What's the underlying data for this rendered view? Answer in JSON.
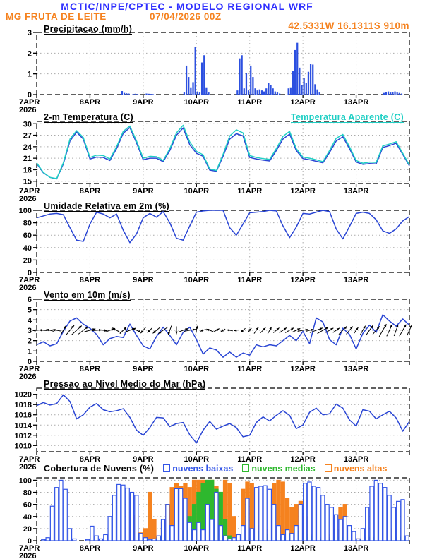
{
  "header": {
    "line1": "MCTIC/INPE/CPTEC - MODELO REGIONAL WRF",
    "location": "MG FRUTA DE LEITE",
    "run": "07/04/2026 00Z",
    "coords": "42.5331W 16.1311S 910m"
  },
  "colors": {
    "header_blue": "#2f2fff",
    "orange": "#f5821f",
    "cyan": "#1fcfc4",
    "line_blue": "#2945d4",
    "precip_bar_blue": "#2c50e0",
    "cloud_low_blue": "#3355e6",
    "cloud_mid_green": "#2eb82e",
    "cloud_high_orange": "#f5821f",
    "grid_gray": "#aaaaaa",
    "frame_black": "#000000"
  },
  "x_axis": {
    "day_labels": [
      "7APR",
      "8APR",
      "9APR",
      "10APR",
      "11APR",
      "12APR",
      "13APR"
    ],
    "year": "2026",
    "days": 7,
    "hours_total": 168
  },
  "chart_data": [
    {
      "id": "precip",
      "type": "bar",
      "title": "Precipitacao (mm/h)",
      "ylabel": "mm/h",
      "ylim": [
        0,
        3
      ],
      "yticks": [
        0,
        1,
        2,
        3
      ],
      "x_step_hours": 1,
      "values": [
        0,
        0,
        0,
        0,
        0,
        0,
        0,
        0,
        0,
        0,
        0,
        0,
        0,
        0,
        0,
        0,
        0,
        0,
        0,
        0,
        0,
        0,
        0,
        0,
        0,
        0,
        0,
        0,
        0,
        0,
        0,
        0,
        0,
        0,
        0,
        0,
        0,
        0,
        0.17,
        0.08,
        0.06,
        0.05,
        0,
        0.03,
        0.04,
        0.03,
        0,
        0,
        0,
        0.05,
        0.04,
        0.03,
        0.02,
        0,
        0,
        0,
        0,
        0,
        0,
        0,
        0,
        0,
        0,
        0,
        0,
        0,
        0.1,
        1.4,
        0.85,
        0.35,
        0.6,
        2.3,
        0.15,
        0.1,
        1.55,
        1.9,
        0.35,
        0.1,
        0,
        0,
        0,
        0,
        0,
        0,
        0,
        0,
        0,
        0,
        0,
        0,
        0.2,
        1.75,
        1.9,
        0.3,
        1.05,
        0.2,
        1.4,
        0.85,
        0.3,
        0.2,
        0.25,
        0.2,
        0.15,
        0.3,
        0.55,
        0.45,
        0.3,
        0.15,
        0.1,
        0.05,
        0,
        0,
        0,
        0.3,
        0.35,
        1.15,
        2.15,
        2.5,
        1.3,
        0.45,
        0.8,
        0.55,
        1.1,
        1.5,
        1.45,
        0.5,
        0.25,
        0.1,
        0,
        0,
        0,
        0,
        0,
        0,
        0,
        0,
        0,
        0,
        0,
        0,
        0,
        0,
        0,
        0,
        0,
        0,
        0,
        0,
        0,
        0,
        0,
        0,
        0,
        0,
        0,
        0,
        0.08,
        0.12,
        0.15,
        0.1,
        0.12,
        0.15,
        0.1,
        0.08,
        0.05,
        0,
        0,
        0
      ]
    },
    {
      "id": "temp",
      "type": "line",
      "title": "2-m Temperatura (C)",
      "right_title": "Temperatura Aparente (C)",
      "ylim": [
        14.4,
        30.6
      ],
      "yticks": [
        15,
        18,
        21,
        24,
        27,
        30
      ],
      "x_step_hours": 3,
      "series": [
        {
          "name": "2-m Temperatura (C)",
          "color_key": "line_blue",
          "values": [
            19.6,
            17.2,
            16.0,
            15.6,
            19.5,
            25.5,
            27.8,
            26.0,
            20.8,
            21.3,
            21.2,
            20.4,
            23.5,
            27.5,
            29.0,
            25.0,
            20.6,
            21.0,
            21.0,
            20.1,
            23.0,
            27.0,
            28.9,
            24.5,
            22.3,
            21.5,
            17.9,
            17.6,
            21.5,
            26.0,
            27.4,
            26.8,
            21.2,
            20.8,
            20.5,
            20.3,
            23.0,
            26.0,
            27.3,
            23.0,
            20.9,
            20.6,
            20.2,
            19.8,
            22.5,
            25.5,
            26.6,
            23.5,
            20.0,
            19.4,
            19.6,
            19.5,
            23.8,
            24.3,
            24.9,
            22.0,
            19.0
          ]
        },
        {
          "name": "Temperatura Aparente (C)",
          "color_key": "cyan",
          "values": [
            19.8,
            17.3,
            16.0,
            15.7,
            19.8,
            26.0,
            28.2,
            26.4,
            21.2,
            21.8,
            21.7,
            20.8,
            24.0,
            28.0,
            29.4,
            25.5,
            21.0,
            21.5,
            21.4,
            20.4,
            23.5,
            27.6,
            29.6,
            25.2,
            22.8,
            21.9,
            18.2,
            17.8,
            22.0,
            26.8,
            28.4,
            27.6,
            21.7,
            21.2,
            20.9,
            20.7,
            23.5,
            26.7,
            28.0,
            23.5,
            21.3,
            21.0,
            20.6,
            20.1,
            23.0,
            26.2,
            27.2,
            24.0,
            20.4,
            19.7,
            20.0,
            19.9,
            24.2,
            24.7,
            25.3,
            22.3,
            19.2
          ]
        }
      ]
    },
    {
      "id": "rh",
      "type": "line",
      "title": "Umidade Relativa em 2m (%)",
      "ylim": [
        0,
        100
      ],
      "yticks": [
        0,
        20,
        40,
        60,
        80,
        100
      ],
      "x_step_hours": 3,
      "series": [
        {
          "name": "Umidade Relativa",
          "color_key": "line_blue",
          "values": [
            88,
            91,
            94,
            95,
            93,
            72,
            52,
            50,
            78,
            97,
            94,
            88,
            94,
            68,
            48,
            62,
            88,
            95,
            89,
            98,
            80,
            55,
            52,
            75,
            97,
            99,
            100,
            100,
            100,
            72,
            60,
            78,
            96,
            97,
            98,
            100,
            99,
            75,
            56,
            73,
            95,
            94,
            97,
            100,
            98,
            70,
            54,
            74,
            95,
            97,
            95,
            85,
            67,
            63,
            70,
            83,
            90
          ]
        }
      ]
    },
    {
      "id": "wind",
      "type": "wind",
      "title": "Vento em 10m (m/s)",
      "ylim": [
        0,
        6
      ],
      "yticks": [
        0,
        1,
        2,
        3,
        4,
        5,
        6
      ],
      "x_step_hours": 3,
      "vector_anchor": 3,
      "speed": [
        1.6,
        1.9,
        1.5,
        1.7,
        2.9,
        3.9,
        4.2,
        3.6,
        3.2,
        2.6,
        1.6,
        2.2,
        2.4,
        2.3,
        3.6,
        2.5,
        1.5,
        1.2,
        2.4,
        3.3,
        2.5,
        1.6,
        2.8,
        3.3,
        2.1,
        0.7,
        1.3,
        1.1,
        0.4,
        0.9,
        0.4,
        0.8,
        0.6,
        1.6,
        1.4,
        1.6,
        1.5,
        2.0,
        2.5,
        2.0,
        2.9,
        1.7,
        4.2,
        3.8,
        2.1,
        1.6,
        3.2,
        2.6,
        1.2,
        2.7,
        3.5,
        2.8,
        4.5,
        3.9,
        3.4,
        4.1,
        3.5
      ],
      "direction_deg": [
        185,
        175,
        165,
        170,
        60,
        50,
        42,
        38,
        15,
        5,
        355,
        20,
        150,
        45,
        20,
        335,
        230,
        225,
        220,
        215,
        250,
        270,
        20,
        10,
        80,
        200,
        160,
        30,
        210,
        170,
        190,
        220,
        50,
        55,
        45,
        60,
        40,
        35,
        30,
        25,
        10,
        15,
        20,
        30,
        30,
        35,
        45,
        50,
        55,
        60,
        55,
        50,
        60,
        65,
        70,
        60,
        65
      ]
    },
    {
      "id": "pressure",
      "type": "line",
      "title": "Pressao ao Nivel Medio do Mar (hPa)",
      "ylim": [
        1008.8,
        1021.2
      ],
      "yticks": [
        1010,
        1012,
        1014,
        1016,
        1018,
        1020
      ],
      "x_step_hours": 3,
      "series": [
        {
          "name": "Pressao ao Nivel Medio do Mar",
          "color_key": "line_blue",
          "values": [
            1017.8,
            1018.4,
            1017.9,
            1018.2,
            1019.9,
            1018.6,
            1015.2,
            1016.0,
            1017.5,
            1018.2,
            1017.0,
            1016.6,
            1016.8,
            1017.2,
            1015.5,
            1013.0,
            1012.0,
            1013.5,
            1015.5,
            1015.4,
            1013.7,
            1014.3,
            1014.5,
            1012.1,
            1010.5,
            1013.0,
            1014.7,
            1013.2,
            1013.8,
            1014.3,
            1013.5,
            1011.7,
            1012.0,
            1014.5,
            1015.6,
            1014.8,
            1015.9,
            1016.8,
            1015.9,
            1013.3,
            1014.0,
            1016.5,
            1017.3,
            1016.0,
            1016.2,
            1018.1,
            1017.3,
            1015.0,
            1013.8,
            1017.0,
            1016.7,
            1015.2,
            1016.0,
            1016.7,
            1015.4,
            1012.8,
            1014.7
          ]
        }
      ]
    },
    {
      "id": "clouds",
      "type": "cloudbar",
      "title": "Cobertura de Nuvens (%)",
      "ylim": [
        0,
        104
      ],
      "yticks": [
        0,
        20,
        40,
        60,
        80,
        100
      ],
      "x_step_hours": 2,
      "legend": [
        {
          "label": "nuvens baixas",
          "color_key": "cloud_low_blue"
        },
        {
          "label": "nuvens medias",
          "color_key": "cloud_mid_green"
        },
        {
          "label": "nuvens altas",
          "color_key": "cloud_high_orange"
        }
      ],
      "series": [
        {
          "name": "nuvens altas",
          "color_key": "cloud_high_orange",
          "style": "solid",
          "values": [
            0,
            0,
            0,
            0,
            0,
            0,
            0,
            0,
            0,
            0,
            0,
            0,
            0,
            0,
            0,
            0,
            0,
            0,
            0,
            0,
            0,
            40,
            42,
            13,
            20,
            80,
            35,
            5,
            30,
            60,
            88,
            95,
            90,
            95,
            88,
            100,
            100,
            100,
            95,
            100,
            90,
            80,
            100,
            95,
            40,
            10,
            85,
            97,
            95,
            80,
            25,
            18,
            10,
            95,
            100,
            97,
            70,
            55,
            60,
            65,
            40,
            10,
            5,
            3,
            2,
            5,
            10,
            18,
            55,
            60,
            20,
            8,
            3,
            2,
            0,
            0,
            0,
            3,
            57,
            20,
            8,
            3,
            2,
            0
          ]
        },
        {
          "name": "nuvens medias",
          "color_key": "cloud_mid_green",
          "style": "solid",
          "values": [
            0,
            0,
            0,
            0,
            0,
            0,
            0,
            0,
            0,
            0,
            0,
            0,
            0,
            0,
            0,
            0,
            0,
            0,
            0,
            0,
            0,
            0,
            0,
            0,
            0,
            0,
            0,
            5,
            8,
            3,
            0,
            0,
            5,
            15,
            40,
            60,
            80,
            95,
            100,
            100,
            85,
            80,
            35,
            8,
            3,
            0,
            0,
            5,
            3,
            8,
            15,
            10,
            5,
            3,
            2,
            5,
            8,
            10,
            15,
            8,
            5,
            10,
            8,
            5,
            3,
            2,
            3,
            5,
            8,
            5,
            3,
            2,
            0,
            2,
            5,
            8,
            5,
            3,
            2,
            0,
            3,
            5,
            8,
            3
          ]
        },
        {
          "name": "nuvens baixas",
          "color_key": "cloud_low_blue",
          "style": "hollow",
          "values": [
            0,
            2,
            5,
            57,
            88,
            100,
            85,
            20,
            3,
            0,
            0,
            2,
            24,
            8,
            3,
            10,
            40,
            75,
            93,
            92,
            87,
            80,
            75,
            12,
            5,
            2,
            3,
            8,
            35,
            60,
            25,
            86,
            86,
            70,
            30,
            18,
            30,
            18,
            60,
            35,
            80,
            25,
            8,
            3,
            5,
            10,
            25,
            70,
            20,
            88,
            90,
            91,
            85,
            60,
            25,
            10,
            18,
            12,
            25,
            60,
            95,
            97,
            90,
            88,
            75,
            60,
            55,
            43,
            35,
            40,
            25,
            15,
            3,
            20,
            55,
            90,
            100,
            95,
            88,
            75,
            55,
            65,
            68,
            8
          ]
        }
      ]
    }
  ]
}
